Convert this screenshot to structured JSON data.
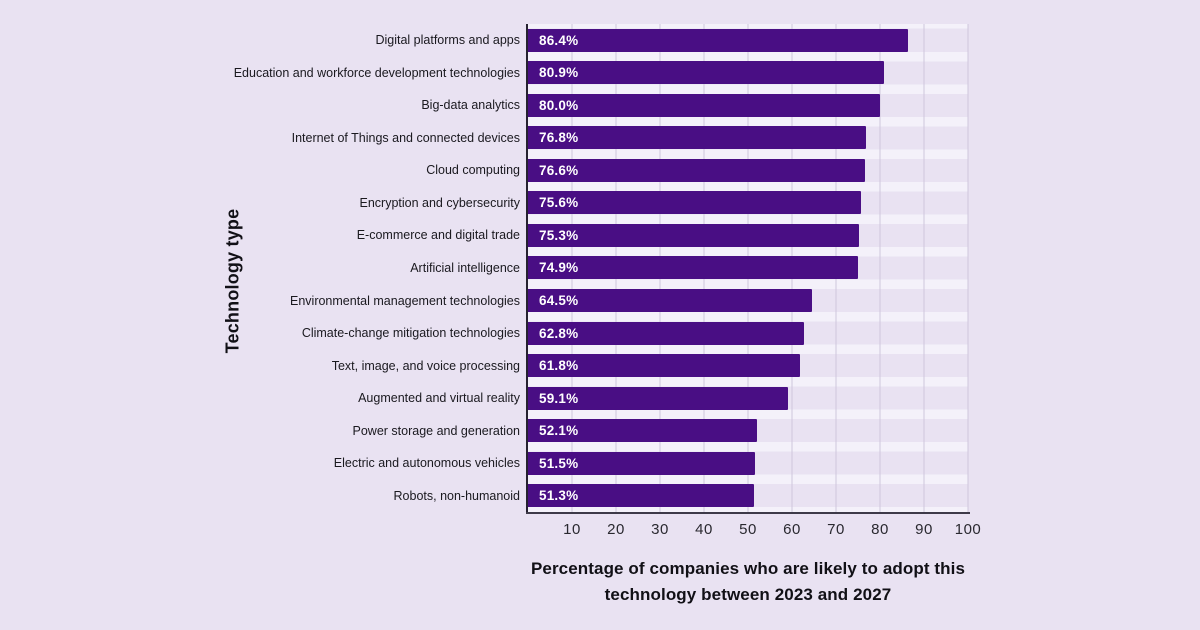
{
  "page": {
    "background": "#E9E2F2",
    "stripe_color": "#F4F1FA",
    "gridline_color": "#CEC7DC",
    "axis_spine_color": "#2E2A38",
    "text_color": "#1A191F"
  },
  "chart_data": {
    "type": "bar",
    "orientation": "horizontal",
    "bar_color": "#490E84",
    "value_label_color": "#FFFFFF",
    "xlabel": "Percentage of companies who are likely to adopt this technology between 2023 and 2027",
    "xlabel_lines": [
      "Percentage of companies who are likely to adopt this",
      "technology between 2023 and 2027"
    ],
    "ylabel": "Technology type",
    "xlim": [
      0,
      100
    ],
    "xticks": [
      10,
      20,
      30,
      40,
      50,
      60,
      70,
      80,
      90,
      100
    ],
    "grid": true,
    "legend": false,
    "categories": [
      "Digital platforms and apps",
      "Education and workforce development technologies",
      "Big-data analytics",
      "Internet of Things and connected devices",
      "Cloud computing",
      "Encryption and cybersecurity",
      "E-commerce and digital trade",
      "Artificial intelligence",
      "Environmental management technologies",
      "Climate-change mitigation technologies",
      "Text, image, and voice processing",
      "Augmented and virtual reality",
      "Power storage and generation",
      "Electric and autonomous vehicles",
      "Robots, non-humanoid"
    ],
    "values": [
      86.4,
      80.9,
      80.0,
      76.8,
      76.6,
      75.6,
      75.3,
      74.9,
      64.5,
      62.8,
      61.8,
      59.1,
      52.1,
      51.5,
      51.3
    ],
    "value_labels": [
      "86.4%",
      "80.9%",
      "80.0%",
      "76.8%",
      "76.6%",
      "75.6%",
      "75.3%",
      "74.9%",
      "64.5%",
      "62.8%",
      "61.8%",
      "59.1%",
      "52.1%",
      "51.5%",
      "51.3%"
    ]
  }
}
